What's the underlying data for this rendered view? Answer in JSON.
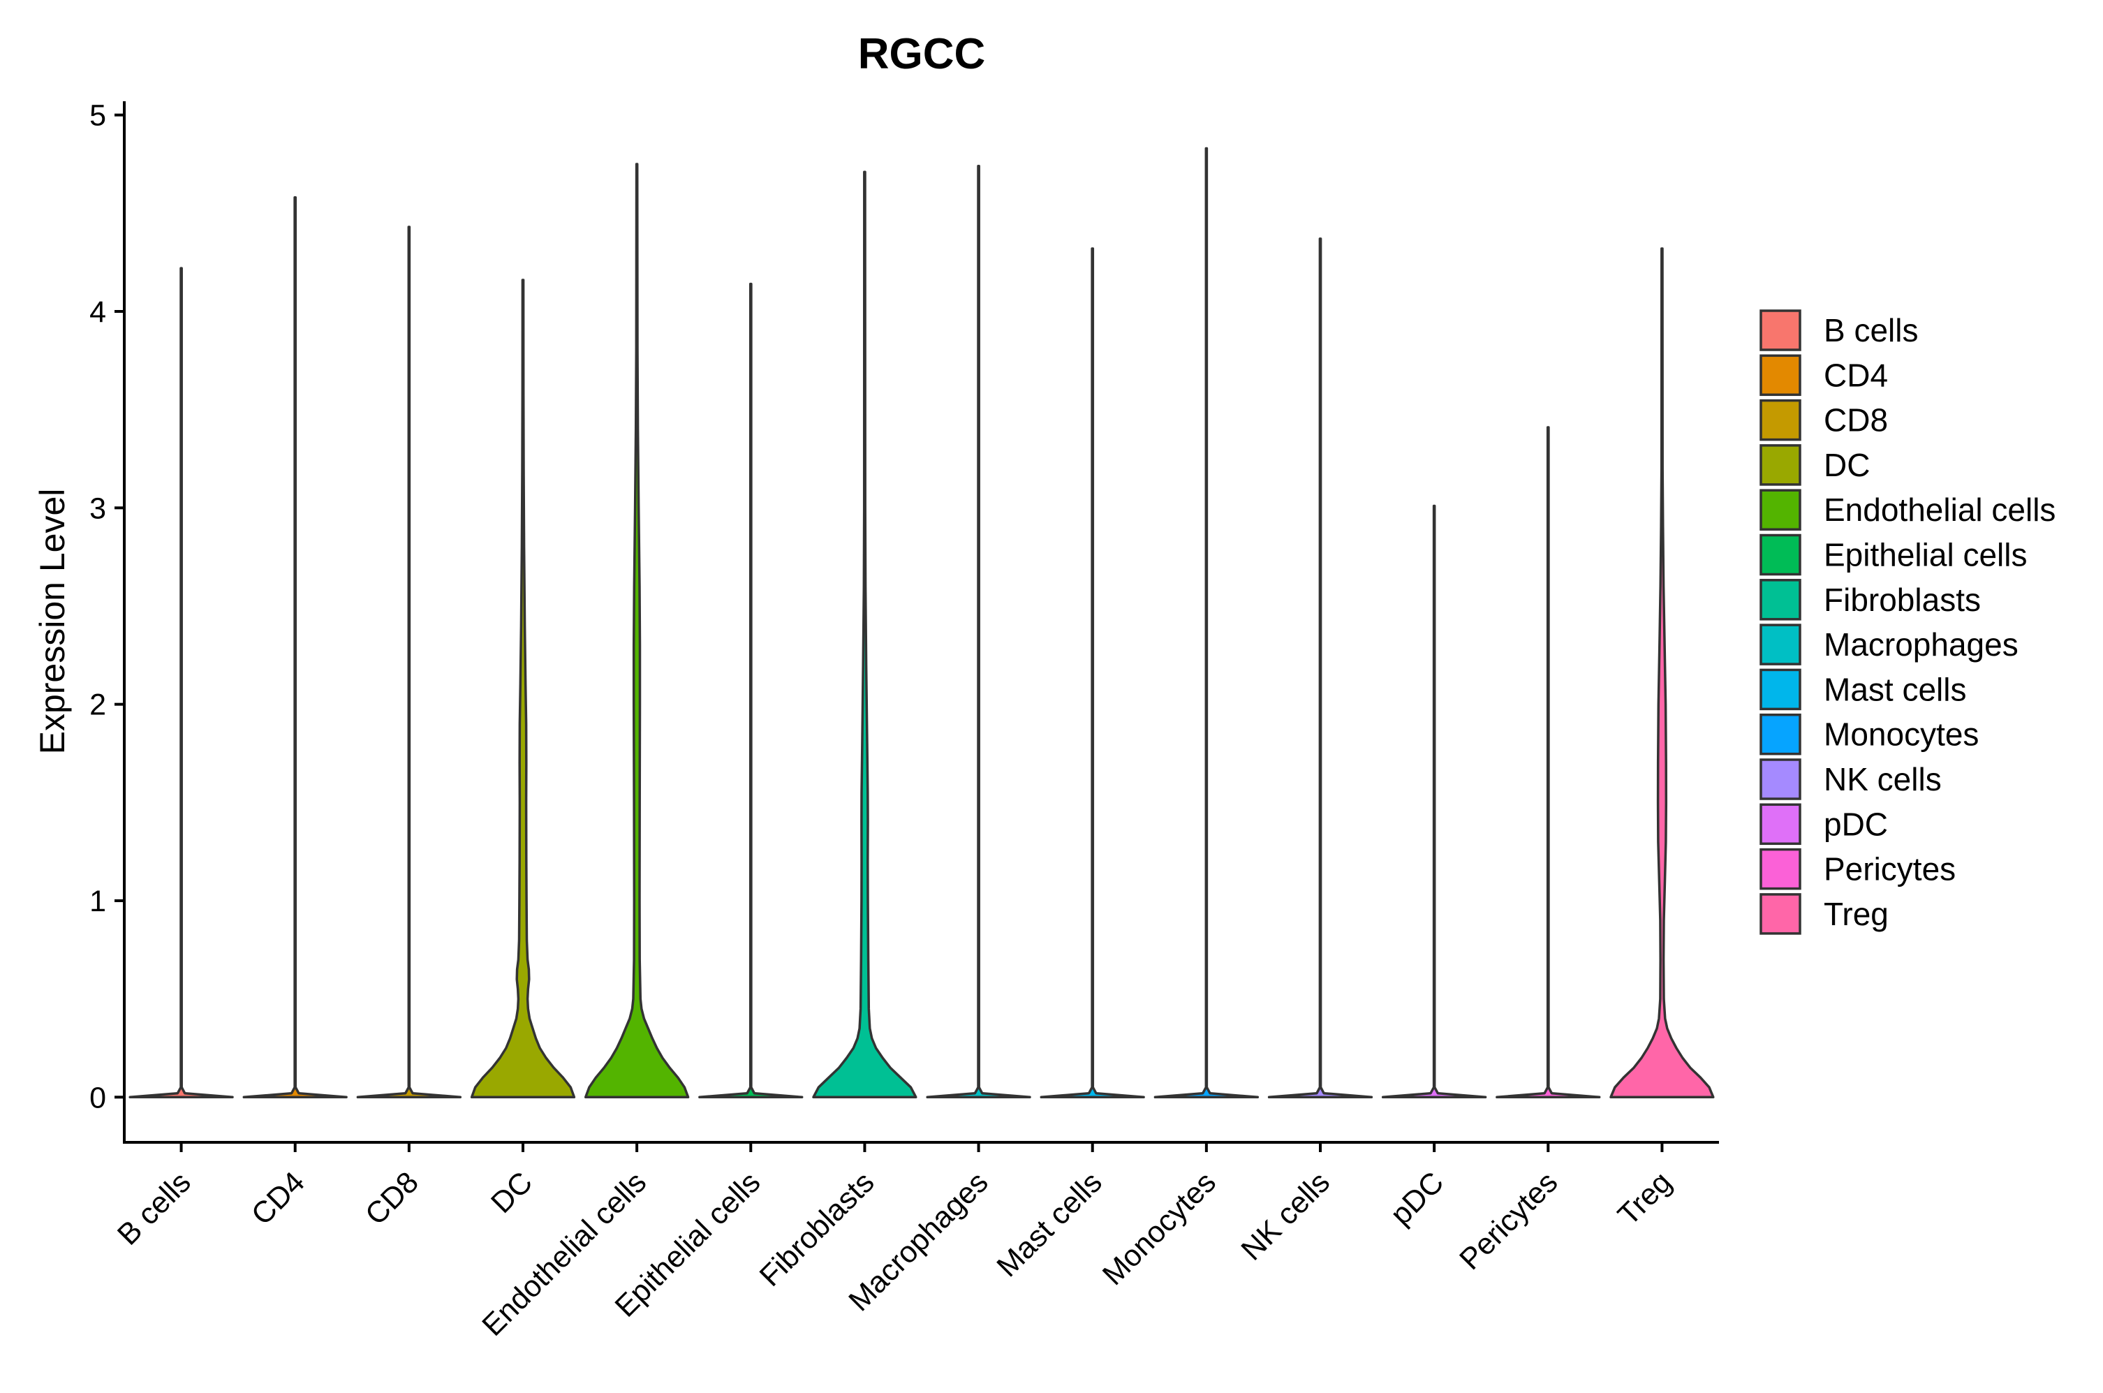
{
  "chart_data": {
    "type": "violin",
    "title": "RGCC",
    "xlabel": "",
    "ylabel": "Expression Level",
    "ylim": [
      -0.23,
      5.07
    ],
    "yticks": [
      0,
      1,
      2,
      3,
      4,
      5
    ],
    "ytick_labels": [
      "0",
      "1",
      "2",
      "3",
      "4",
      "5"
    ],
    "legend_position": "right",
    "grid": false,
    "categories": [
      "B cells",
      "CD4",
      "CD8",
      "DC",
      "Endothelial cells",
      "Epithelial cells",
      "Fibroblasts",
      "Macrophages",
      "Mast cells",
      "Monocytes",
      "NK cells",
      "pDC",
      "Pericytes",
      "Treg"
    ],
    "colors": [
      "#F8766D",
      "#E38900",
      "#C49A00",
      "#99A800",
      "#53B400",
      "#00BC56",
      "#00C094",
      "#00BFC4",
      "#00B6EB",
      "#06A4FF",
      "#A58AFF",
      "#DF70F8",
      "#FB61D7",
      "#FF66A8"
    ],
    "max_values": [
      4.22,
      4.58,
      4.43,
      4.16,
      4.75,
      4.14,
      4.71,
      4.74,
      4.32,
      4.83,
      4.37,
      3.01,
      3.41,
      4.32
    ],
    "density_profiles": [
      [
        [
          0,
          1
        ],
        [
          0.02,
          0.07
        ],
        [
          0.05,
          0.008
        ],
        [
          0.4,
          0.008
        ],
        [
          1,
          0.008
        ]
      ],
      [
        [
          0,
          1
        ],
        [
          0.02,
          0.07
        ],
        [
          0.05,
          0.008
        ],
        [
          0.4,
          0.008
        ],
        [
          1,
          0.008
        ]
      ],
      [
        [
          0,
          1
        ],
        [
          0.02,
          0.07
        ],
        [
          0.05,
          0.008
        ],
        [
          0.4,
          0.008
        ],
        [
          1,
          0.008
        ]
      ],
      [
        [
          0,
          1
        ],
        [
          0.05,
          0.93
        ],
        [
          0.1,
          0.78
        ],
        [
          0.15,
          0.6
        ],
        [
          0.2,
          0.45
        ],
        [
          0.25,
          0.33
        ],
        [
          0.3,
          0.25
        ],
        [
          0.35,
          0.19
        ],
        [
          0.4,
          0.13
        ],
        [
          0.45,
          0.1
        ],
        [
          0.5,
          0.09
        ],
        [
          0.55,
          0.1
        ],
        [
          0.6,
          0.12
        ],
        [
          0.65,
          0.115
        ],
        [
          0.7,
          0.09
        ],
        [
          0.8,
          0.075
        ],
        [
          1.0,
          0.07
        ],
        [
          1.2,
          0.065
        ],
        [
          1.5,
          0.062
        ],
        [
          1.7,
          0.066
        ],
        [
          1.9,
          0.062
        ],
        [
          2.1,
          0.05
        ],
        [
          2.4,
          0.035
        ],
        [
          2.8,
          0.022
        ],
        [
          3.2,
          0.014
        ],
        [
          3.6,
          0.01
        ],
        [
          1,
          0.008
        ]
      ],
      [
        [
          0,
          1
        ],
        [
          0.05,
          0.93
        ],
        [
          0.1,
          0.8
        ],
        [
          0.15,
          0.64
        ],
        [
          0.2,
          0.5
        ],
        [
          0.25,
          0.39
        ],
        [
          0.3,
          0.3
        ],
        [
          0.35,
          0.22
        ],
        [
          0.4,
          0.14
        ],
        [
          0.45,
          0.09
        ],
        [
          0.5,
          0.07
        ],
        [
          0.7,
          0.055
        ],
        [
          1.0,
          0.052
        ],
        [
          1.5,
          0.055
        ],
        [
          2.0,
          0.06
        ],
        [
          2.3,
          0.06
        ],
        [
          2.6,
          0.052
        ],
        [
          3.0,
          0.035
        ],
        [
          3.4,
          0.02
        ],
        [
          3.8,
          0.012
        ],
        [
          1,
          0.008
        ]
      ],
      [
        [
          0,
          1
        ],
        [
          0.02,
          0.07
        ],
        [
          0.05,
          0.008
        ],
        [
          0.4,
          0.008
        ],
        [
          1,
          0.008
        ]
      ],
      [
        [
          0,
          1
        ],
        [
          0.05,
          0.9
        ],
        [
          0.1,
          0.7
        ],
        [
          0.15,
          0.5
        ],
        [
          0.2,
          0.35
        ],
        [
          0.25,
          0.22
        ],
        [
          0.3,
          0.14
        ],
        [
          0.35,
          0.1
        ],
        [
          0.45,
          0.08
        ],
        [
          0.7,
          0.07
        ],
        [
          1.0,
          0.062
        ],
        [
          1.2,
          0.06
        ],
        [
          1.4,
          0.062
        ],
        [
          1.55,
          0.06
        ],
        [
          1.8,
          0.048
        ],
        [
          2.2,
          0.03
        ],
        [
          2.6,
          0.016
        ],
        [
          3.0,
          0.01
        ],
        [
          1,
          0.008
        ]
      ],
      [
        [
          0,
          1
        ],
        [
          0.02,
          0.07
        ],
        [
          0.05,
          0.008
        ],
        [
          0.4,
          0.008
        ],
        [
          1,
          0.008
        ]
      ],
      [
        [
          0,
          1
        ],
        [
          0.02,
          0.07
        ],
        [
          0.05,
          0.008
        ],
        [
          0.4,
          0.008
        ],
        [
          1,
          0.008
        ]
      ],
      [
        [
          0,
          1
        ],
        [
          0.02,
          0.07
        ],
        [
          0.05,
          0.008
        ],
        [
          0.4,
          0.008
        ],
        [
          1,
          0.008
        ]
      ],
      [
        [
          0,
          1
        ],
        [
          0.02,
          0.07
        ],
        [
          0.05,
          0.008
        ],
        [
          0.4,
          0.008
        ],
        [
          1,
          0.008
        ]
      ],
      [
        [
          0,
          1
        ],
        [
          0.02,
          0.07
        ],
        [
          0.05,
          0.008
        ],
        [
          0.4,
          0.008
        ],
        [
          1,
          0.008
        ]
      ],
      [
        [
          0,
          1
        ],
        [
          0.02,
          0.07
        ],
        [
          0.05,
          0.008
        ],
        [
          0.4,
          0.008
        ],
        [
          1,
          0.008
        ]
      ],
      [
        [
          0,
          1
        ],
        [
          0.05,
          0.92
        ],
        [
          0.1,
          0.75
        ],
        [
          0.15,
          0.55
        ],
        [
          0.2,
          0.4
        ],
        [
          0.25,
          0.28
        ],
        [
          0.3,
          0.18
        ],
        [
          0.35,
          0.1
        ],
        [
          0.4,
          0.06
        ],
        [
          0.5,
          0.035
        ],
        [
          0.7,
          0.03
        ],
        [
          0.9,
          0.035
        ],
        [
          1.1,
          0.055
        ],
        [
          1.3,
          0.075
        ],
        [
          1.5,
          0.08
        ],
        [
          1.7,
          0.078
        ],
        [
          2.0,
          0.07
        ],
        [
          2.3,
          0.05
        ],
        [
          2.6,
          0.03
        ],
        [
          2.9,
          0.018
        ],
        [
          3.2,
          0.01
        ],
        [
          1,
          0.008
        ]
      ]
    ]
  }
}
